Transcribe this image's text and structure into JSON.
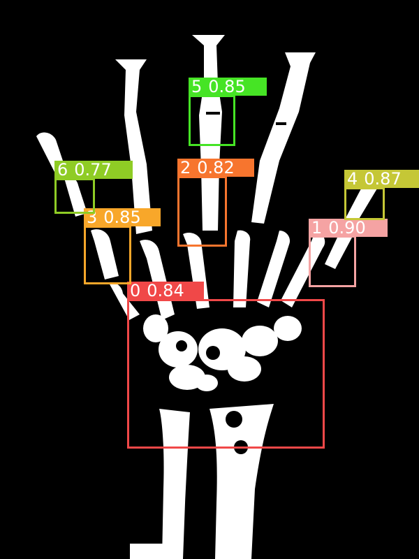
{
  "detections": [
    {
      "cls": "0",
      "score": "0.84",
      "color": "#f04848"
    },
    {
      "cls": "1",
      "score": "0.90",
      "color": "#f5a3a3"
    },
    {
      "cls": "2",
      "score": "0.82",
      "color": "#f7752e"
    },
    {
      "cls": "3",
      "score": "0.85",
      "color": "#f8a72a"
    },
    {
      "cls": "4",
      "score": "0.87",
      "color": "#c5c736"
    },
    {
      "cls": "5",
      "score": "0.85",
      "color": "#46e425"
    },
    {
      "cls": "6",
      "score": "0.77",
      "color": "#8fcc25"
    }
  ],
  "image": {
    "subject": "hand-xray-silhouette",
    "background": "#000000",
    "bone": "#ffffff"
  }
}
